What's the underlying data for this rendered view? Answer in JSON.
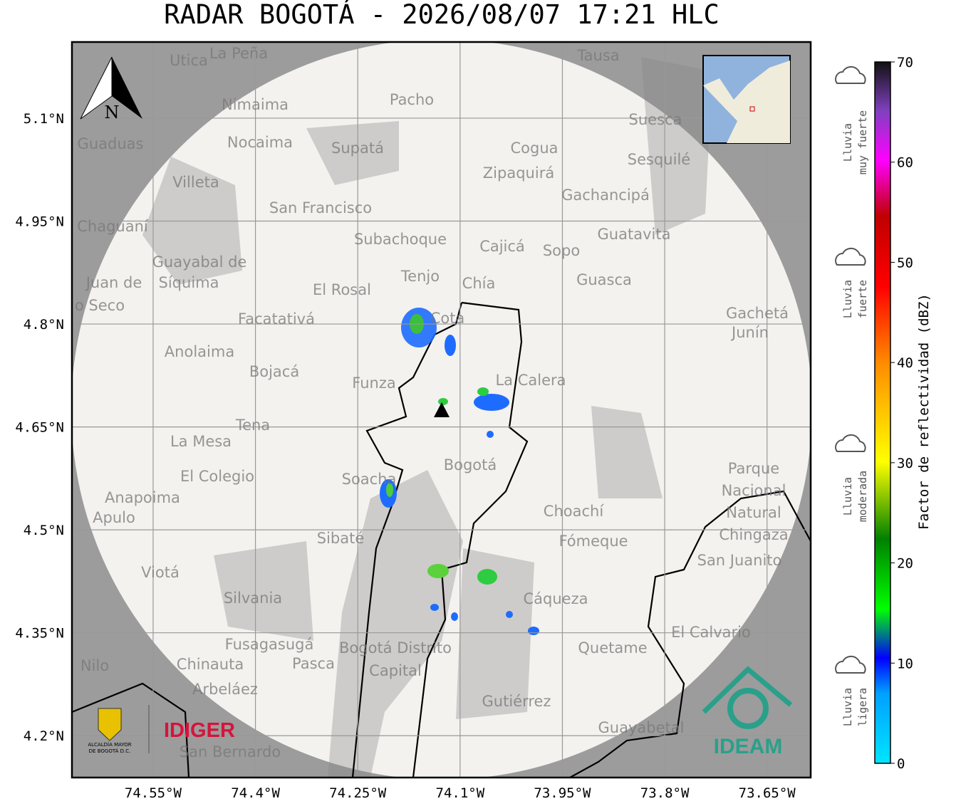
{
  "title": "RADAR BOGOTÁ - 2026/08/07 17:21 HLC",
  "map": {
    "xlim": [
      -74.669,
      -73.586
    ],
    "ylim": [
      4.139,
      5.211
    ],
    "lon_ticks": [
      {
        "value": -74.55,
        "label": "74.55°W"
      },
      {
        "value": -74.4,
        "label": "74.4°W"
      },
      {
        "value": -74.25,
        "label": "74.25°W"
      },
      {
        "value": -74.1,
        "label": "74.1°W"
      },
      {
        "value": -73.95,
        "label": "73.95°W"
      },
      {
        "value": -73.8,
        "label": "73.8°W"
      },
      {
        "value": -73.65,
        "label": "73.65°W"
      }
    ],
    "lat_ticks": [
      {
        "value": 5.1,
        "label": "5.1°N"
      },
      {
        "value": 4.95,
        "label": "4.95°N"
      },
      {
        "value": 4.8,
        "label": "4.8°N"
      },
      {
        "value": 4.65,
        "label": "4.65°N"
      },
      {
        "value": 4.5,
        "label": "4.5°N"
      },
      {
        "value": 4.35,
        "label": "4.35°N"
      },
      {
        "value": 4.2,
        "label": "4.2°N"
      }
    ],
    "places": [
      "La Peña",
      "Utica",
      "Tausa",
      "Pacho",
      "Nimaima",
      "Suesca",
      "Guaduas",
      "Nocaima",
      "Supatá",
      "Cogua",
      "Sesquilé",
      "Zipaquirá",
      "Villeta",
      "Gachancipá",
      "San Francisco",
      "Chaguaní",
      "Guatavita",
      "Subachoque",
      "Cajicá",
      "Sopo",
      "Guayabal de",
      "Síquima",
      "Tenjo",
      "Guasca",
      "Chía",
      "El Rosal",
      "Juan de",
      "o Seco",
      "Gachetá",
      "Junín",
      "Facatativá",
      "Cota",
      "Anolaima",
      "Bojacá",
      "Funza",
      "La Calera",
      "Tena",
      "La Mesa",
      "Bogotá",
      "Parque",
      "Nacional",
      "Natural",
      "Chingaza",
      "Soacha",
      "El Colegio",
      "Anapoima",
      "Apulo",
      "Choachí",
      "Sibaté",
      "Fómeque",
      "San Juanito",
      "Viotá",
      "Silvania",
      "Cáqueza",
      "El Calvario",
      "Fusagasugá",
      "Quetame",
      "Bogotá Distrito",
      "Capital",
      "Nilo",
      "Chinauta",
      "Pasca",
      "Arbeláez",
      "Gutiérrez",
      "Guayabetal",
      "San Bernardo"
    ],
    "north": "N"
  },
  "colorbar": {
    "label": "Factor de reflectividad (dBZ)",
    "lim": [
      0,
      70
    ],
    "ticks": [
      0,
      10,
      20,
      30,
      40,
      50,
      60,
      70
    ]
  },
  "rain_legend": [
    [
      "Lluvia",
      "muy fuerte"
    ],
    [
      "Lluvia",
      "fuerte"
    ],
    [
      "Lluvia",
      "moderada"
    ],
    [
      "Lluvia",
      "ligera"
    ]
  ],
  "logos": {
    "alcaldia": [
      "ALCALDÍA MAYOR",
      "DE BOGOTÁ D.C."
    ],
    "idiger": "IDIGER",
    "ideam": "IDEAM"
  }
}
